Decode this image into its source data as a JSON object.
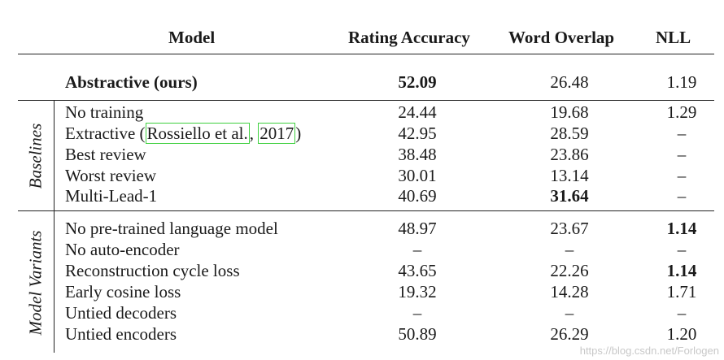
{
  "header": {
    "model": "Model",
    "rating": "Rating Accuracy",
    "overlap": "Word Overlap",
    "nll": "NLL"
  },
  "top_row": {
    "model": "Abstractive (ours)",
    "rating": "52.09",
    "overlap": "26.48",
    "nll": "1.19"
  },
  "groups": {
    "baselines": "Baselines",
    "variants": "Model Variants"
  },
  "baselines": [
    {
      "model": "No training",
      "rating": "24.44",
      "overlap": "19.68",
      "nll": "1.29"
    },
    {
      "model_pre": "Extractive (",
      "cite_author": "Rossiello et al.",
      "cite_sep": ", ",
      "cite_year": "2017",
      "model_post": ")",
      "rating": "42.95",
      "overlap": "28.59",
      "nll": "–"
    },
    {
      "model": "Best review",
      "rating": "38.48",
      "overlap": "23.86",
      "nll": "–"
    },
    {
      "model": "Worst review",
      "rating": "30.01",
      "overlap": "13.14",
      "nll": "–"
    },
    {
      "model": "Multi-Lead-1",
      "rating": "40.69",
      "overlap": "31.64",
      "nll": "–"
    }
  ],
  "variants": [
    {
      "model": "No pre-trained language model",
      "rating": "48.97",
      "overlap": "23.67",
      "nll": "1.14"
    },
    {
      "model": "No auto-encoder",
      "rating": "–",
      "overlap": "–",
      "nll": "–"
    },
    {
      "model": "Reconstruction cycle loss",
      "rating": "43.65",
      "overlap": "22.26",
      "nll": "1.14"
    },
    {
      "model": "Early cosine loss",
      "rating": "19.32",
      "overlap": "14.28",
      "nll": "1.71"
    },
    {
      "model": "Untied decoders",
      "rating": "–",
      "overlap": "–",
      "nll": "–"
    },
    {
      "model": "Untied encoders",
      "rating": "50.89",
      "overlap": "26.29",
      "nll": "1.20"
    }
  ],
  "watermark": "https://blog.csdn.net/Forlogen"
}
